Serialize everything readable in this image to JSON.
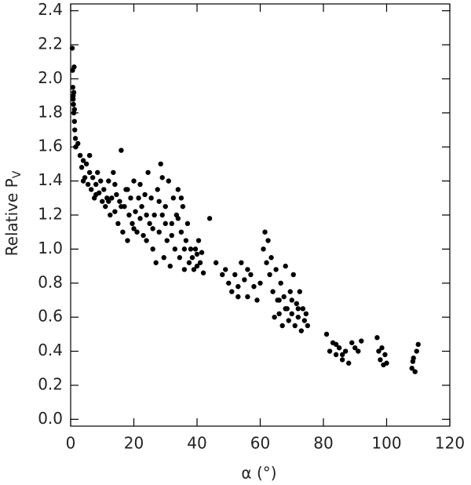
{
  "chart_data": {
    "type": "scatter",
    "xlabel": "α (°)",
    "ylabel": {
      "text": "Relative P",
      "subscript": "V"
    },
    "color": "#000000",
    "xlim": [
      0,
      120
    ],
    "xticks": [
      0,
      20,
      40,
      60,
      80,
      100,
      120
    ],
    "ylim": [
      -0.04,
      2.44
    ],
    "yticks": [
      {
        "value": 0,
        "label": "0.0"
      },
      0.2,
      0.4,
      0.6,
      0.8,
      {
        "value": 1,
        "label": "1.0"
      },
      1.2,
      1.4,
      1.6,
      1.8,
      {
        "value": 2,
        "label": "2.0"
      },
      2.2,
      2.4
    ],
    "x": [
      0.5,
      0.6,
      0.7,
      0.8,
      0.9,
      1.0,
      1.1,
      1.2,
      1.3,
      1.5,
      0.8,
      1.0,
      1.2,
      1.6,
      2.3,
      3,
      3.5,
      4,
      4.5,
      5,
      5.5,
      6,
      6.5,
      7,
      7.5,
      8,
      8.5,
      9,
      9.5,
      10,
      4,
      6,
      8,
      10.5,
      11,
      11.5,
      12,
      12.5,
      13,
      13.5,
      14,
      14.5,
      15,
      15.5,
      16,
      16.5,
      17,
      17.5,
      18,
      18.5,
      19,
      19.5,
      20,
      20.5,
      21,
      21.5,
      22,
      22.5,
      23,
      23.5,
      24,
      24.5,
      25,
      12,
      14,
      16,
      18,
      20,
      22,
      24,
      25.5,
      26,
      26.5,
      27,
      27.5,
      28,
      28.5,
      29,
      29.5,
      30,
      30.5,
      31,
      31.5,
      32,
      32.5,
      33,
      33.5,
      34,
      34.5,
      35,
      35.5,
      36,
      36.5,
      37,
      37.5,
      38,
      26,
      28,
      30,
      32,
      34,
      36,
      29,
      35,
      38.5,
      39,
      39.5,
      40,
      40.5,
      41,
      41.5,
      42,
      40,
      44,
      46,
      48,
      49,
      50,
      51,
      52,
      53,
      54,
      55,
      56,
      57,
      58,
      59,
      60,
      53,
      56,
      61,
      61.5,
      62,
      62.5,
      63,
      63.5,
      64,
      64.5,
      65,
      65.5,
      66,
      66.5,
      67,
      67.5,
      68,
      68.5,
      69,
      69.5,
      70,
      70.5,
      71,
      71.5,
      72,
      72.5,
      73,
      73.5,
      74,
      74.5,
      75,
      66,
      68,
      70,
      72,
      81,
      82,
      83,
      84,
      85,
      86,
      87,
      88,
      89,
      90,
      91,
      92,
      86,
      84,
      97,
      97.5,
      98,
      98.5,
      99,
      99.5,
      100,
      108,
      108.5,
      109,
      109.5,
      110,
      108.3
    ],
    "y": [
      2.18,
      2.05,
      1.95,
      1.9,
      1.85,
      1.8,
      2.07,
      1.75,
      1.7,
      1.65,
      1.88,
      1.92,
      1.82,
      1.6,
      1.62,
      1.55,
      1.48,
      1.52,
      1.42,
      1.5,
      1.38,
      1.45,
      1.35,
      1.42,
      1.3,
      1.38,
      1.45,
      1.33,
      1.4,
      1.28,
      1.4,
      1.55,
      1.32,
      1.35,
      1.25,
      1.3,
      1.4,
      1.2,
      1.3,
      1.45,
      1.22,
      1.32,
      1.15,
      1.28,
      1.58,
      1.1,
      1.25,
      1.35,
      1.05,
      1.2,
      1.3,
      1.15,
      1.4,
      1.22,
      1.1,
      1.3,
      1.18,
      1.25,
      1.08,
      1.32,
      1.2,
      1.45,
      1.15,
      1.28,
      1.38,
      1.25,
      1.35,
      1.12,
      1.38,
      1.05,
      1.3,
      1.0,
      1.2,
      0.92,
      1.35,
      1.1,
      1.5,
      1.2,
      0.95,
      1.25,
      1.05,
      1.4,
      0.9,
      1.15,
      1.3,
      1.0,
      1.2,
      1.35,
      0.95,
      1.1,
      1.25,
      0.88,
      1.05,
      1.15,
      0.92,
      1.0,
      1.12,
      1.28,
      1.15,
      1.08,
      1.18,
      1.0,
      1.42,
      1.3,
      0.95,
      0.88,
      1.0,
      0.9,
      1.05,
      0.92,
      0.98,
      0.86,
      0.97,
      1.18,
      0.92,
      0.85,
      0.88,
      0.8,
      0.75,
      0.85,
      0.78,
      0.92,
      0.82,
      0.72,
      0.85,
      0.78,
      0.7,
      0.8,
      0.72,
      0.88,
      1.0,
      1.1,
      0.92,
      1.05,
      0.85,
      0.95,
      0.75,
      0.6,
      0.88,
      0.7,
      0.62,
      0.8,
      0.55,
      0.72,
      0.9,
      0.65,
      0.58,
      0.75,
      0.62,
      0.85,
      0.55,
      0.68,
      0.6,
      0.75,
      0.52,
      0.65,
      0.58,
      0.62,
      0.55,
      0.7,
      0.65,
      0.7,
      0.65,
      0.5,
      0.4,
      0.45,
      0.38,
      0.42,
      0.35,
      0.4,
      0.33,
      0.45,
      0.42,
      0.4,
      0.46,
      0.38,
      0.44,
      0.48,
      0.4,
      0.35,
      0.42,
      0.32,
      0.38,
      0.33,
      0.3,
      0.36,
      0.28,
      0.4,
      0.44,
      0.34
    ]
  }
}
